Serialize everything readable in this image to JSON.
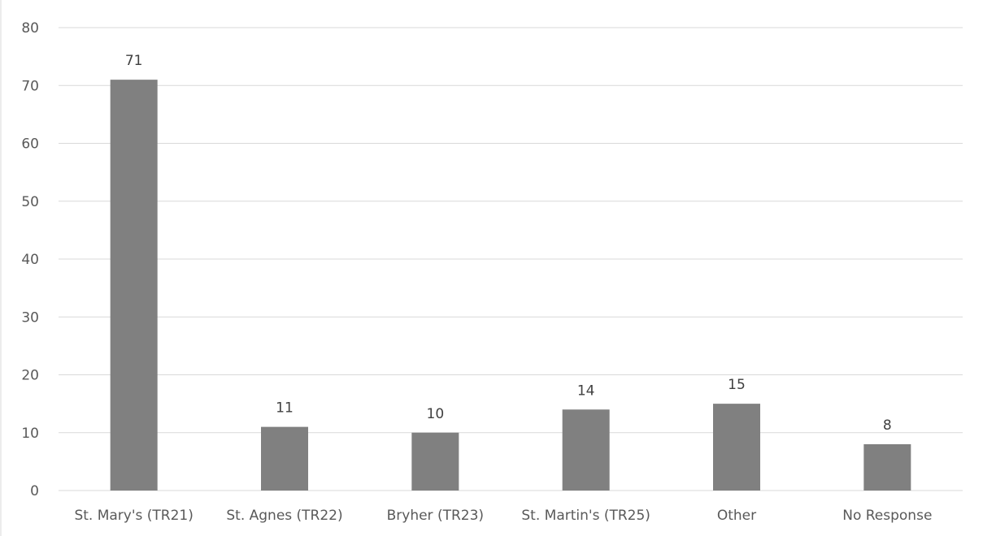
{
  "chart_data": {
    "type": "bar",
    "categories": [
      "St. Mary's (TR21)",
      "St. Agnes (TR22)",
      "Bryher (TR23)",
      "St. Martin's (TR25)",
      "Other",
      "No Response"
    ],
    "values": [
      71,
      11,
      10,
      14,
      15,
      8
    ],
    "data_labels": [
      "71",
      "11",
      "10",
      "14",
      "15",
      "8"
    ],
    "ylim": [
      0,
      80
    ],
    "yticks": [
      "0",
      "10",
      "20",
      "30",
      "40",
      "50",
      "60",
      "70",
      "80"
    ],
    "grid": true,
    "bar_color": "#808080",
    "grid_color": "#d9d9d9"
  }
}
